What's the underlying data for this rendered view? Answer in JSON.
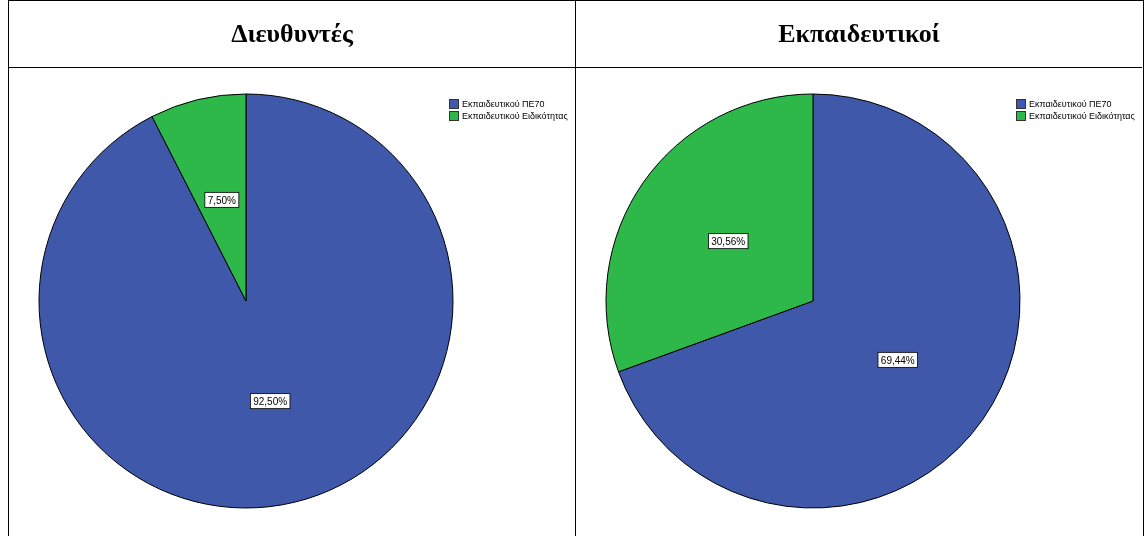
{
  "chart_data": [
    {
      "type": "pie",
      "title": "Διευθυντές",
      "categories": [
        "Εκπαιδευτικού ΠΕ70",
        "Εκπαιδευτικού Ειδικότητας"
      ],
      "values": [
        92.5,
        7.5
      ],
      "colors": [
        "#3f58aa",
        "#2fb84a"
      ],
      "value_labels": [
        "92,50%",
        "7,50%"
      ],
      "legend": "top right"
    },
    {
      "type": "pie",
      "title": "Εκπαιδευτικοί",
      "categories": [
        "Εκπαιδευτικού ΠΕ70",
        "Εκπαιδευτικού Ειδικότητας"
      ],
      "values": [
        69.44,
        30.56
      ],
      "colors": [
        "#3f58aa",
        "#2fb84a"
      ],
      "value_labels": [
        "69,44%",
        "30,56%"
      ],
      "legend": "top right"
    }
  ]
}
